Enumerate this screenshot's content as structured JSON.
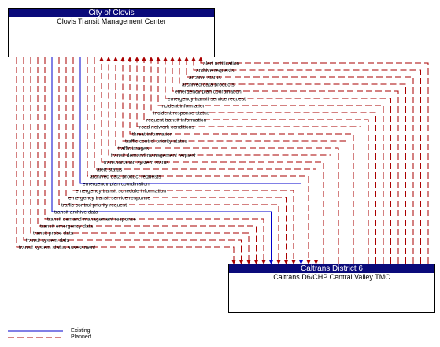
{
  "top_element": {
    "owner": "City of Clovis",
    "name": "Clovis Transit Management Center"
  },
  "bottom_element": {
    "owner": "Caltrans District 6",
    "name": "Caltrans D6/CHP Central Valley TMC"
  },
  "flows": [
    {
      "label": "alert notification",
      "status": "planned",
      "direction": "up"
    },
    {
      "label": "archive requests",
      "status": "planned",
      "direction": "up"
    },
    {
      "label": "archive status",
      "status": "planned",
      "direction": "up"
    },
    {
      "label": "archived data products",
      "status": "planned",
      "direction": "up"
    },
    {
      "label": "emergency plan coordination",
      "status": "planned",
      "direction": "up"
    },
    {
      "label": "emergency transit service request",
      "status": "planned",
      "direction": "up"
    },
    {
      "label": "incident information",
      "status": "planned",
      "direction": "up"
    },
    {
      "label": "incident response status",
      "status": "planned",
      "direction": "up"
    },
    {
      "label": "request transit information",
      "status": "planned",
      "direction": "up"
    },
    {
      "label": "road network conditions",
      "status": "planned",
      "direction": "up"
    },
    {
      "label": "threat information",
      "status": "planned",
      "direction": "up"
    },
    {
      "label": "traffic control priority status",
      "status": "planned",
      "direction": "up"
    },
    {
      "label": "traffic images",
      "status": "planned",
      "direction": "up"
    },
    {
      "label": "transit demand management request",
      "status": "planned",
      "direction": "up"
    },
    {
      "label": "transportation system status",
      "status": "planned",
      "direction": "up"
    },
    {
      "label": "alert status",
      "status": "planned",
      "direction": "down"
    },
    {
      "label": "archived data product requests",
      "status": "planned",
      "direction": "down"
    },
    {
      "label": "emergency plan coordination",
      "status": "existing",
      "direction": "down"
    },
    {
      "label": "emergency transit schedule information",
      "status": "planned",
      "direction": "down"
    },
    {
      "label": "emergency transit service response",
      "status": "planned",
      "direction": "down"
    },
    {
      "label": "traffic control priority request",
      "status": "planned",
      "direction": "down"
    },
    {
      "label": "transit archive data",
      "status": "existing",
      "direction": "down"
    },
    {
      "label": "transit demand management response",
      "status": "planned",
      "direction": "down"
    },
    {
      "label": "transit emergency data",
      "status": "planned",
      "direction": "down"
    },
    {
      "label": "transit probe data",
      "status": "planned",
      "direction": "down"
    },
    {
      "label": "transit system data",
      "status": "planned",
      "direction": "down"
    },
    {
      "label": "transit system status assessment",
      "status": "planned",
      "direction": "down"
    }
  ],
  "legend": {
    "existing": "Existing",
    "planned": "Planned"
  },
  "colors": {
    "header": "#0a0a7a",
    "existing": "#0000cc",
    "planned": "#aa0000"
  }
}
